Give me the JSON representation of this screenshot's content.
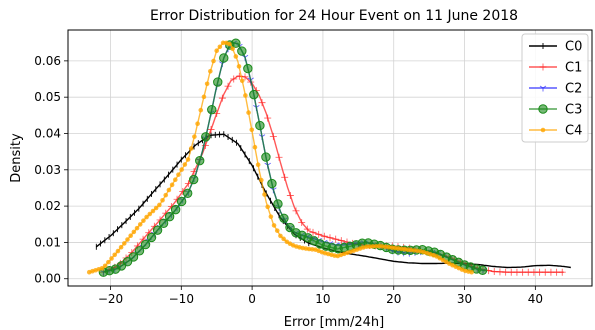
{
  "chart_data": {
    "type": "line",
    "title": "Error Distribution for 24 Hour Event on 11 June 2018",
    "xlabel": "Error [mm/24h]",
    "ylabel": "Density",
    "xlim": [
      -26,
      48
    ],
    "ylim": [
      -0.002,
      0.0685
    ],
    "xticks": [
      -20,
      -10,
      0,
      10,
      20,
      30,
      40
    ],
    "yticks": [
      0.0,
      0.01,
      0.02,
      0.03,
      0.04,
      0.05,
      0.06
    ],
    "ytick_labels": [
      "0.00",
      "0.01",
      "0.02",
      "0.03",
      "0.04",
      "0.05",
      "0.06"
    ],
    "grid": true,
    "legend_position": "top-right",
    "series": [
      {
        "name": "C0",
        "color": "#000000",
        "marker": "tick",
        "marker_every": 0.6,
        "x": [
          -22,
          -20,
          -18,
          -16,
          -14,
          -12,
          -10,
          -8,
          -6,
          -4,
          -2,
          0,
          2,
          4,
          6,
          8,
          10,
          12,
          14,
          16,
          18,
          20,
          22,
          24,
          26,
          28,
          30,
          32,
          34,
          36,
          38,
          40,
          42,
          44,
          45
        ],
        "y": [
          0.0088,
          0.0118,
          0.0155,
          0.0193,
          0.0238,
          0.0282,
          0.0328,
          0.0368,
          0.0395,
          0.0398,
          0.0372,
          0.0312,
          0.0235,
          0.0168,
          0.0122,
          0.0098,
          0.0085,
          0.0075,
          0.0068,
          0.0062,
          0.0055,
          0.0048,
          0.0044,
          0.0042,
          0.0042,
          0.0043,
          0.0042,
          0.0039,
          0.0034,
          0.0031,
          0.0032,
          0.0036,
          0.0037,
          0.0034,
          0.0031
        ],
        "marker_stop": 8
      },
      {
        "name": "C1",
        "color": "#ff2020",
        "marker": "plus",
        "marker_every": 0.8,
        "x": [
          -21,
          -19,
          -17,
          -15,
          -13,
          -11,
          -9,
          -7,
          -5,
          -4,
          -3,
          -2,
          -1,
          0,
          1,
          2,
          3,
          4,
          5,
          6,
          7,
          8,
          10,
          12,
          14,
          16,
          18,
          20,
          22,
          24,
          26,
          28,
          30,
          32,
          34,
          36,
          38,
          40,
          42,
          44
        ],
        "y": [
          0.0018,
          0.0035,
          0.0072,
          0.0118,
          0.0162,
          0.0208,
          0.0262,
          0.0345,
          0.0455,
          0.0508,
          0.0545,
          0.0558,
          0.0556,
          0.0538,
          0.0505,
          0.0455,
          0.0392,
          0.032,
          0.0252,
          0.0195,
          0.0155,
          0.0132,
          0.0118,
          0.0108,
          0.0098,
          0.0092,
          0.009,
          0.009,
          0.0085,
          0.0078,
          0.007,
          0.0058,
          0.0042,
          0.0028,
          0.002,
          0.0018,
          0.0018,
          0.0018,
          0.0018,
          0.0018
        ]
      },
      {
        "name": "C2",
        "color": "#2020ff",
        "marker": "tri",
        "marker_every": 0.8,
        "x": [
          -21,
          -19,
          -17,
          -15,
          -13,
          -11,
          -9,
          -8,
          -7,
          -6,
          -5,
          -4,
          -3,
          -2,
          -1,
          0,
          1,
          2,
          3,
          4,
          5,
          6,
          7,
          8,
          10,
          12,
          14,
          16,
          18,
          20,
          22,
          24,
          26,
          28,
          30,
          32,
          33
        ],
        "y": [
          0.0018,
          0.0028,
          0.0055,
          0.0095,
          0.0142,
          0.0185,
          0.0238,
          0.0285,
          0.0352,
          0.0438,
          0.053,
          0.0608,
          0.065,
          0.0648,
          0.061,
          0.0532,
          0.0432,
          0.033,
          0.0245,
          0.0185,
          0.0148,
          0.0128,
          0.012,
          0.0115,
          0.0102,
          0.0092,
          0.0095,
          0.01,
          0.0092,
          0.0075,
          0.007,
          0.0075,
          0.0072,
          0.0055,
          0.0038,
          0.0025,
          0.0022
        ]
      },
      {
        "name": "C3",
        "color": "#1a8a1a",
        "marker": "circle",
        "marker_every": 0.85,
        "x": [
          -21,
          -19,
          -17,
          -15,
          -13,
          -11,
          -9,
          -8,
          -7,
          -6,
          -5,
          -4,
          -3,
          -2,
          -1,
          0,
          1,
          2,
          3,
          4,
          5,
          6,
          7,
          8,
          10,
          12,
          14,
          16,
          18,
          20,
          22,
          24,
          26,
          28,
          30,
          32,
          33
        ],
        "y": [
          0.0018,
          0.0028,
          0.0055,
          0.0095,
          0.0142,
          0.0185,
          0.0238,
          0.0285,
          0.0352,
          0.0438,
          0.053,
          0.0608,
          0.065,
          0.0648,
          0.061,
          0.0532,
          0.0432,
          0.033,
          0.0245,
          0.0185,
          0.0148,
          0.0128,
          0.012,
          0.0112,
          0.0092,
          0.0082,
          0.009,
          0.01,
          0.0092,
          0.008,
          0.0078,
          0.008,
          0.0072,
          0.0055,
          0.0038,
          0.0025,
          0.0022
        ]
      },
      {
        "name": "C4",
        "color": "#ffa500",
        "marker": "dot",
        "marker_every": 0.45,
        "x": [
          -23,
          -21,
          -19,
          -17,
          -15,
          -13,
          -11,
          -9,
          -8,
          -7,
          -6,
          -5,
          -4,
          -3,
          -2,
          -1,
          0,
          1,
          2,
          3,
          4,
          5,
          6,
          7,
          8,
          9,
          10,
          12,
          14,
          16,
          18,
          20,
          22,
          24,
          26,
          28,
          30,
          31
        ],
        "y": [
          0.0018,
          0.003,
          0.0075,
          0.0122,
          0.0168,
          0.0205,
          0.0268,
          0.033,
          0.0402,
          0.0485,
          0.0565,
          0.0628,
          0.0652,
          0.0645,
          0.0598,
          0.051,
          0.0405,
          0.0298,
          0.021,
          0.015,
          0.0118,
          0.01,
          0.009,
          0.0085,
          0.0082,
          0.008,
          0.0072,
          0.0062,
          0.0075,
          0.0088,
          0.009,
          0.0085,
          0.008,
          0.0075,
          0.0062,
          0.004,
          0.0022,
          0.0018
        ]
      }
    ]
  }
}
